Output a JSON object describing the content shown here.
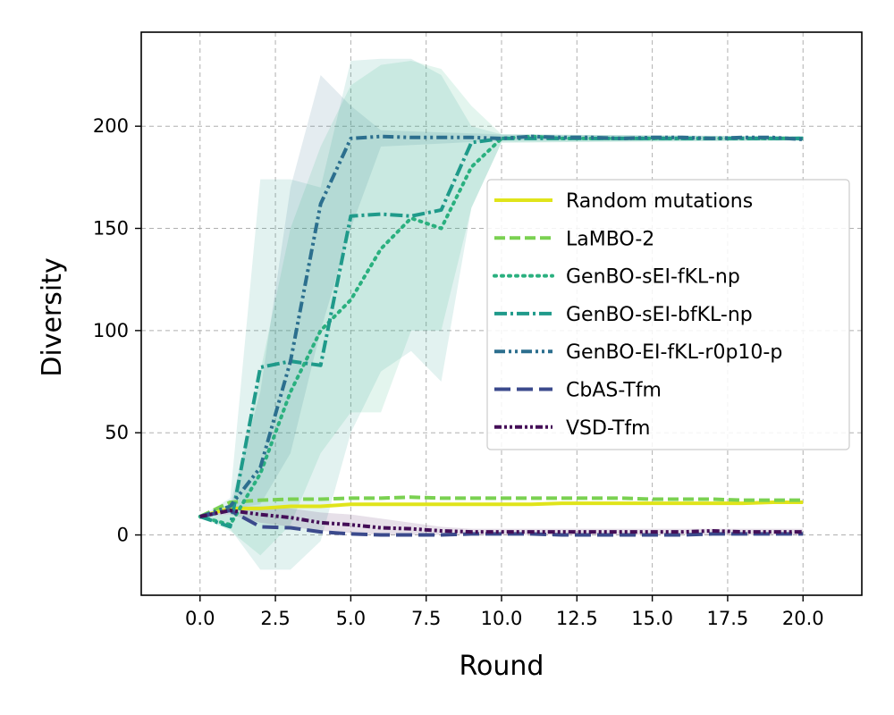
{
  "chart_data": {
    "type": "line",
    "title": "",
    "xlabel": "Round",
    "ylabel": "Diversity",
    "xlim": [
      -1.95,
      21.95
    ],
    "ylim": [
      -29.5,
      246
    ],
    "xticks": [
      0.0,
      2.5,
      5.0,
      7.5,
      10.0,
      12.5,
      15.0,
      17.5,
      20.0
    ],
    "xtick_labels": [
      "0.0",
      "2.5",
      "5.0",
      "7.5",
      "10.0",
      "12.5",
      "15.0",
      "17.5",
      "20.0"
    ],
    "yticks": [
      0,
      50,
      100,
      150,
      200
    ],
    "ytick_labels": [
      "0",
      "50",
      "100",
      "150",
      "200"
    ],
    "grid": true,
    "legend_position": "center-right",
    "series": [
      {
        "name": "Random mutations",
        "color": "#e0e41a",
        "style": "solid",
        "x": [
          0,
          1,
          2,
          3,
          4,
          5,
          6,
          7,
          8,
          9,
          10,
          11,
          12,
          13,
          14,
          15,
          16,
          17,
          18,
          19,
          20
        ],
        "values": [
          9,
          13,
          13,
          14,
          14,
          15,
          15,
          15,
          15,
          15,
          15,
          15,
          15.5,
          15.5,
          15.5,
          15.5,
          15.5,
          15.5,
          15.5,
          16,
          16
        ]
      },
      {
        "name": "LaMBO-2",
        "color": "#7ad151",
        "style": "dashed",
        "x": [
          0,
          1,
          2,
          3,
          4,
          5,
          6,
          7,
          8,
          9,
          10,
          11,
          12,
          13,
          14,
          15,
          16,
          17,
          18,
          19,
          20
        ],
        "values": [
          9,
          16,
          17,
          17.5,
          17.5,
          18,
          18,
          18.5,
          18,
          18,
          18,
          18,
          18,
          18,
          18,
          17.5,
          17.5,
          17.5,
          17,
          17,
          17
        ]
      },
      {
        "name": "GenBO-sEI-fKL-np",
        "color": "#2ab07f",
        "style": "dotted",
        "x": [
          0,
          1,
          2,
          3,
          4,
          5,
          6,
          7,
          8,
          9,
          10,
          11,
          12,
          13,
          14,
          15,
          16,
          17,
          18,
          19,
          20
        ],
        "values": [
          9,
          5,
          30,
          70,
          100,
          115,
          140,
          155,
          150,
          180,
          194,
          195,
          194,
          194,
          194,
          194,
          194,
          194,
          194,
          194,
          194
        ]
      },
      {
        "name": "GenBO-sEI-bfKL-np",
        "color": "#1f9a8a",
        "style": "dashdot",
        "x": [
          0,
          1,
          2,
          3,
          4,
          5,
          6,
          7,
          8,
          9,
          10,
          11,
          12,
          13,
          14,
          15,
          16,
          17,
          18,
          19,
          20
        ],
        "values": [
          9,
          4,
          82,
          85,
          83,
          156,
          157,
          156,
          159,
          192,
          194,
          194,
          194,
          194,
          194,
          194,
          194,
          194,
          194,
          194,
          194
        ]
      },
      {
        "name": "GenBO-EI-fKL-r0p10-p",
        "color": "#2c6f8e",
        "style": "dashdotdot",
        "x": [
          0,
          1,
          2,
          3,
          4,
          5,
          6,
          7,
          8,
          9,
          10,
          11,
          12,
          13,
          14,
          15,
          16,
          17,
          18,
          19,
          20
        ],
        "values": [
          9,
          14,
          33,
          85,
          162,
          194,
          195,
          194.5,
          194.5,
          194.5,
          194,
          195,
          194.5,
          194.5,
          194,
          194.5,
          194.5,
          194,
          194.5,
          194.5,
          193.5
        ]
      },
      {
        "name": "CbAS-Tfm",
        "color": "#3b4a8c",
        "style": "longdash",
        "x": [
          0,
          1,
          2,
          3,
          4,
          5,
          6,
          7,
          8,
          9,
          10,
          11,
          12,
          13,
          14,
          15,
          16,
          17,
          18,
          19,
          20
        ],
        "values": [
          9,
          12,
          4,
          3.5,
          1.5,
          0.5,
          0,
          0,
          0,
          0.5,
          0.5,
          0.5,
          0,
          0,
          0,
          0,
          0,
          0.5,
          0.5,
          0.5,
          0.5
        ]
      },
      {
        "name": "VSD-Tfm",
        "color": "#440e57",
        "style": "densedashdotdot",
        "x": [
          0,
          1,
          2,
          3,
          4,
          5,
          6,
          7,
          8,
          9,
          10,
          11,
          12,
          13,
          14,
          15,
          16,
          17,
          18,
          19,
          20
        ],
        "values": [
          9,
          12,
          10,
          8.5,
          6,
          5,
          3.5,
          3,
          2,
          1.5,
          1.5,
          1.5,
          1.5,
          1.5,
          1.5,
          1.5,
          1.5,
          2,
          1.5,
          1.5,
          1.5
        ]
      }
    ],
    "bands": [
      {
        "series": "GenBO-EI-fKL-r0p10-p",
        "color": "#2c6f8e",
        "x": [
          0,
          1,
          2,
          3,
          4,
          5,
          6,
          10,
          20
        ],
        "lower": [
          9,
          13,
          15,
          40,
          100,
          150,
          190,
          193,
          193
        ],
        "upper": [
          9,
          15,
          70,
          170,
          225,
          210,
          198,
          196,
          195
        ]
      },
      {
        "series": "GenBO-sEI-bfKL-np",
        "color": "#1f9a8a",
        "x": [
          0,
          1,
          2,
          3,
          4,
          5,
          6,
          7,
          8,
          9,
          10,
          20
        ],
        "lower": [
          9,
          3,
          -17,
          -17,
          -3,
          50,
          80,
          90,
          75,
          160,
          192,
          193
        ],
        "upper": [
          9,
          18,
          174,
          174,
          170,
          232,
          233,
          233,
          225,
          200,
          196,
          195
        ]
      },
      {
        "series": "GenBO-sEI-fKL-np",
        "color": "#2ab07f",
        "x": [
          0,
          1,
          2,
          3,
          4,
          5,
          6,
          7,
          8,
          9,
          10,
          20
        ],
        "lower": [
          9,
          2,
          -10,
          5,
          40,
          60,
          60,
          100,
          100,
          160,
          192,
          193
        ],
        "upper": [
          9,
          10,
          80,
          150,
          190,
          220,
          230,
          232,
          228,
          210,
          196,
          195
        ]
      },
      {
        "series": "VSD-Tfm",
        "color": "#440e57",
        "x": [
          0,
          1,
          2,
          3,
          4,
          5,
          6,
          7,
          8,
          9,
          10,
          20
        ],
        "lower": [
          9,
          10,
          6,
          4,
          2,
          1,
          0,
          0,
          0,
          0,
          0,
          0
        ],
        "upper": [
          9,
          14,
          14,
          13,
          11,
          10,
          8,
          6,
          4,
          3,
          3,
          3
        ]
      }
    ]
  }
}
